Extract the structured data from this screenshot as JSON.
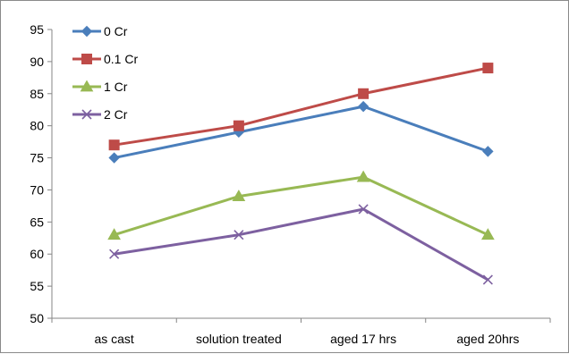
{
  "chart_data": {
    "type": "line",
    "title": "",
    "xlabel": "",
    "ylabel": "",
    "categories": [
      "as cast",
      "solution treated",
      "aged 17 hrs",
      "aged 20hrs"
    ],
    "ylim": [
      50,
      95
    ],
    "yticks": [
      "50",
      "55",
      "60",
      "65",
      "70",
      "75",
      "80",
      "85",
      "90",
      "95"
    ],
    "grid": false,
    "legend_position": "top-left",
    "series": [
      {
        "name": "0 Cr",
        "values": [
          75,
          79,
          83,
          76
        ],
        "color": "#4a7ebb",
        "marker": "diamond"
      },
      {
        "name": "0.1 Cr",
        "values": [
          77,
          80,
          85,
          89
        ],
        "color": "#be4b48",
        "marker": "square"
      },
      {
        "name": "1 Cr",
        "values": [
          63,
          69,
          72,
          63
        ],
        "color": "#98b954",
        "marker": "triangle"
      },
      {
        "name": "2 Cr",
        "values": [
          60,
          63,
          67,
          56
        ],
        "color": "#7d60a0",
        "marker": "x"
      }
    ]
  }
}
